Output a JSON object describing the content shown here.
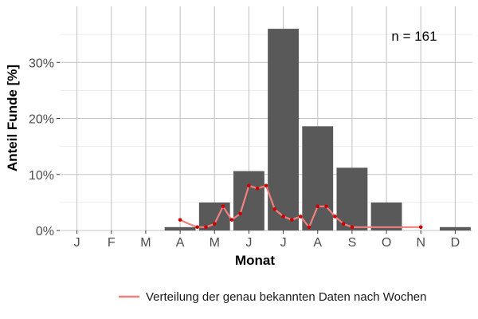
{
  "chart_data": {
    "type": "bar",
    "categories": [
      "J",
      "F",
      "M",
      "A",
      "M",
      "J",
      "J",
      "A",
      "S",
      "O",
      "N",
      "D"
    ],
    "values": [
      0,
      0,
      0,
      0.6,
      5.0,
      10.6,
      36.0,
      18.6,
      11.2,
      5.0,
      0,
      0.6
    ],
    "ylim": [
      0,
      40
    ],
    "yticks": [
      0,
      10,
      20,
      30
    ],
    "ytick_labels": [
      "0%",
      "10%",
      "20%",
      "30%"
    ],
    "xlabel": "Monat",
    "ylabel": "Anteil Funde [%]",
    "annotation": "n = 161",
    "grid": true,
    "legend": "bottom",
    "series": [
      {
        "type": "line",
        "name": "Verteilung der genau bekannten Daten nach Wochen",
        "color": "#f08080",
        "point_color": "#d00000",
        "x": [
          4.0,
          4.25,
          4.5,
          4.75,
          5.0,
          5.25,
          5.5,
          5.75,
          6.0,
          6.25,
          6.5,
          6.75,
          7.0,
          7.25,
          7.5,
          7.75,
          8.0,
          8.25,
          8.5,
          8.75,
          9.0,
          9.25,
          9.5,
          9.75,
          10.0,
          10.25,
          10.5,
          10.75,
          11.0
        ],
        "y": [
          1.9,
          1.2,
          0.6,
          0.6,
          1.2,
          4.3,
          1.9,
          3.0,
          8.0,
          7.5,
          8.0,
          3.8,
          2.5,
          1.9,
          2.5,
          0.6,
          4.3,
          4.3,
          2.5,
          1.2,
          0.6,
          0.6,
          0.6,
          0.6,
          0.6,
          0.6,
          0.6,
          0.6,
          0.6
        ],
        "points_shown": [
          0,
          2,
          3,
          4,
          5,
          6,
          7,
          8,
          9,
          10,
          11,
          12,
          13,
          14,
          15,
          16,
          17,
          18,
          19,
          20,
          28
        ]
      }
    ],
    "bar_color": "#595959"
  }
}
